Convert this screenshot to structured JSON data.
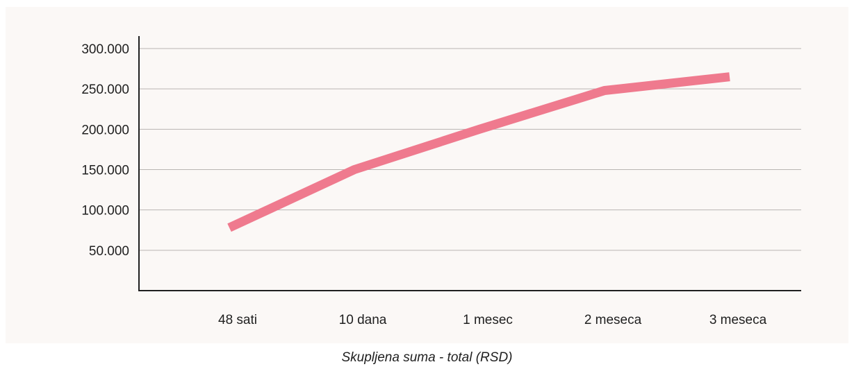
{
  "chart_data": {
    "type": "line",
    "categories": [
      "48 sati",
      "10 dana",
      "1 mesec",
      "2 meseca",
      "3 meseca"
    ],
    "series": [
      {
        "values": [
          78000,
          150000,
          200000,
          248000,
          265000
        ]
      }
    ],
    "yticks": [
      50000,
      100000,
      150000,
      200000,
      250000,
      300000
    ],
    "ytick_labels": [
      "50.000",
      "100.000",
      "150.000",
      "200.000",
      "250.000",
      "300.000"
    ],
    "ylim": [
      0,
      300000
    ],
    "grid": true,
    "legend": "none",
    "caption": "Skupljena suma - total (RSD)",
    "colors": {
      "line": "#ef7a8e",
      "grid": "#b9b5b2",
      "axis": "#1f1f1f",
      "background": "#fbf8f6"
    }
  }
}
